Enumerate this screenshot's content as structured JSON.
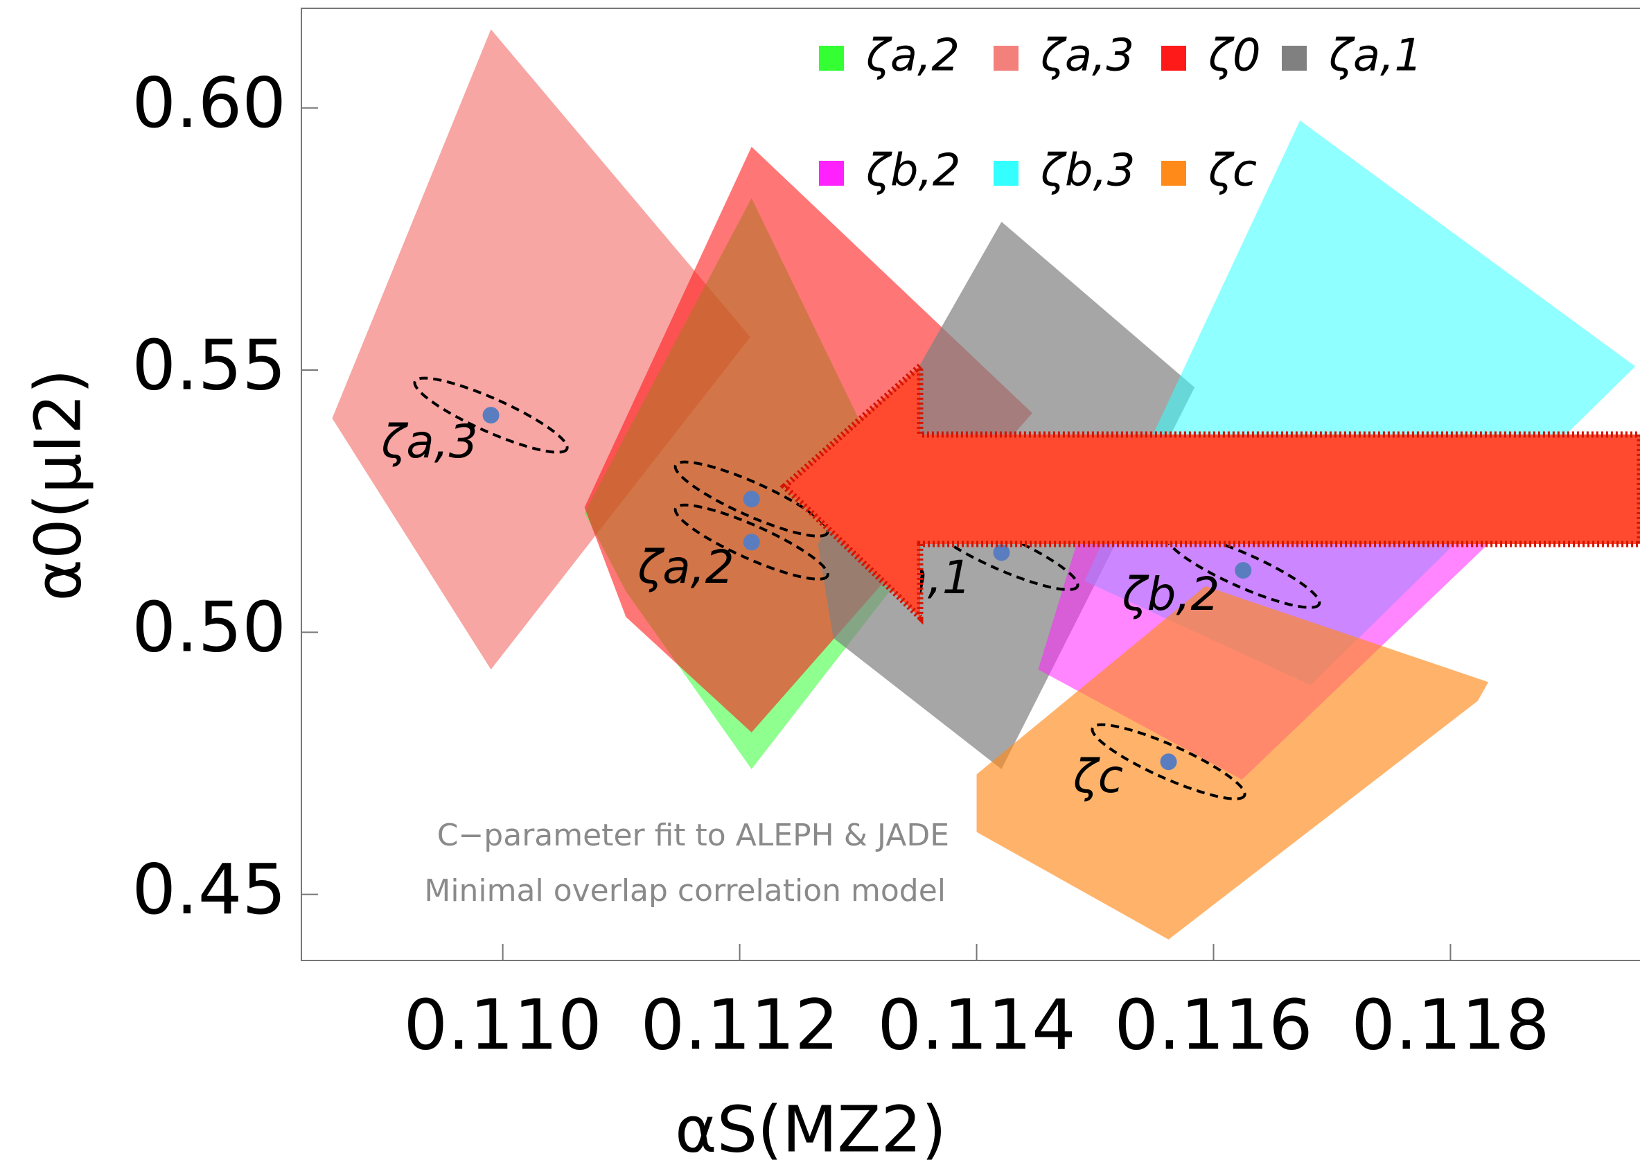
{
  "chart_data": {
    "type": "region",
    "xlabel": "αS(MZ2)",
    "ylabel": "α0(μI2)",
    "annotation_lines": [
      "C−parameter fit to ALEPH & JADE",
      "Minimal overlap correlation model"
    ],
    "point_labels": [
      "ζa,3",
      "ζa,2",
      "a,1",
      "ζb,2",
      "ζc"
    ],
    "xlim": [
      0.1083,
      0.1196
    ],
    "ylim": [
      0.4374,
      0.619
    ],
    "xticks": [
      {
        "value": 0.11,
        "label": "0.110"
      },
      0.112,
      0.114,
      0.116,
      0.118
    ],
    "yticks": [
      {
        "value": 0.6,
        "label": "0.60"
      },
      0.55,
      {
        "value": 0.5,
        "label": "0.50"
      },
      0.45
    ],
    "series": [
      {
        "name": "ζa,2",
        "color": "#33ff33",
        "x": [
          0.11069,
          0.11104,
          0.1121,
          0.11354,
          0.1121
        ],
        "y": [
          0.5228,
          0.5078,
          0.4739,
          0.5158,
          0.5828
        ],
        "point_x": [
          0.1121
        ],
        "point_y": [
          0.5172
        ]
      },
      {
        "name": "ζa,3",
        "color": "#f4807c",
        "x": [
          0.10856,
          0.1099,
          0.11209,
          0.1099
        ],
        "y": [
          0.5408,
          0.615,
          0.5563,
          0.4929
        ],
        "point_x": [
          0.1099
        ],
        "point_y": [
          0.5414
        ]
      },
      {
        "name": "ζ0",
        "color": "#ff1a1a",
        "x": [
          0.11069,
          0.1121,
          0.11447,
          0.1121,
          0.11104
        ],
        "y": [
          0.5238,
          0.5926,
          0.5418,
          0.4809,
          0.5029
        ],
        "point_x": [
          0.1121
        ],
        "point_y": [
          0.5254
        ]
      },
      {
        "name": "ζa,1",
        "color": "#808080",
        "x": [
          0.11266,
          0.11421,
          0.11584,
          0.11421,
          0.11279
        ],
        "y": [
          0.5168,
          0.5783,
          0.5467,
          0.4739,
          0.4989
        ],
        "point_x": [
          0.11421
        ],
        "point_y": [
          0.5152
        ]
      },
      {
        "name": "ζb,2",
        "color": "#ff22ff",
        "x": [
          0.11452,
          0.11487,
          0.11814,
          0.11841,
          0.11624
        ],
        "y": [
          0.4929,
          0.5188,
          0.5368,
          0.5188,
          0.4719
        ],
        "point_x": [
          0.11625
        ],
        "point_y": [
          0.5118
        ]
      },
      {
        "name": "ζb,3",
        "color": "#33ffff",
        "x": [
          0.11491,
          0.11673,
          0.11956,
          0.11682
        ],
        "y": [
          0.5098,
          0.5976,
          0.5507,
          0.4899
        ]
      },
      {
        "name": "ζc",
        "color": "#ff8a1a",
        "x": [
          0.114,
          0.114,
          0.11562,
          0.11823,
          0.11832,
          0.11593
        ],
        "y": [
          0.4729,
          0.4619,
          0.4414,
          0.4869,
          0.4905,
          0.5088
        ],
        "point_x": [
          0.11562
        ],
        "point_y": [
          0.4753
        ]
      }
    ]
  }
}
